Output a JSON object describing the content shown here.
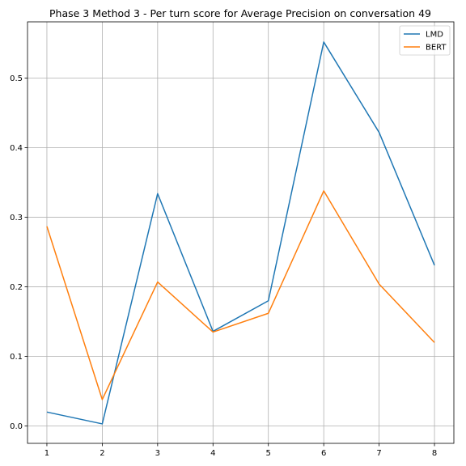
{
  "chart_data": {
    "type": "line",
    "title": "Phase 3 Method 3 - Per turn score for Average Precision on conversation 49",
    "xlabel": "",
    "ylabel": "",
    "x": [
      1,
      2,
      3,
      4,
      5,
      6,
      7,
      8
    ],
    "xlim": [
      0.65,
      8.35
    ],
    "ylim": [
      -0.025,
      0.581
    ],
    "xticks": [
      "1",
      "2",
      "3",
      "4",
      "5",
      "6",
      "7",
      "8"
    ],
    "yticks": [
      "0.0",
      "0.1",
      "0.2",
      "0.3",
      "0.4",
      "0.5"
    ],
    "grid": true,
    "legend_position": "top-right",
    "series": [
      {
        "name": "LMD",
        "color": "#1f77b4",
        "values": [
          0.02,
          0.003,
          0.334,
          0.136,
          0.18,
          0.552,
          0.422,
          0.231
        ]
      },
      {
        "name": "BERT",
        "color": "#ff7f0e",
        "values": [
          0.287,
          0.038,
          0.207,
          0.135,
          0.162,
          0.338,
          0.204,
          0.12
        ]
      }
    ]
  }
}
